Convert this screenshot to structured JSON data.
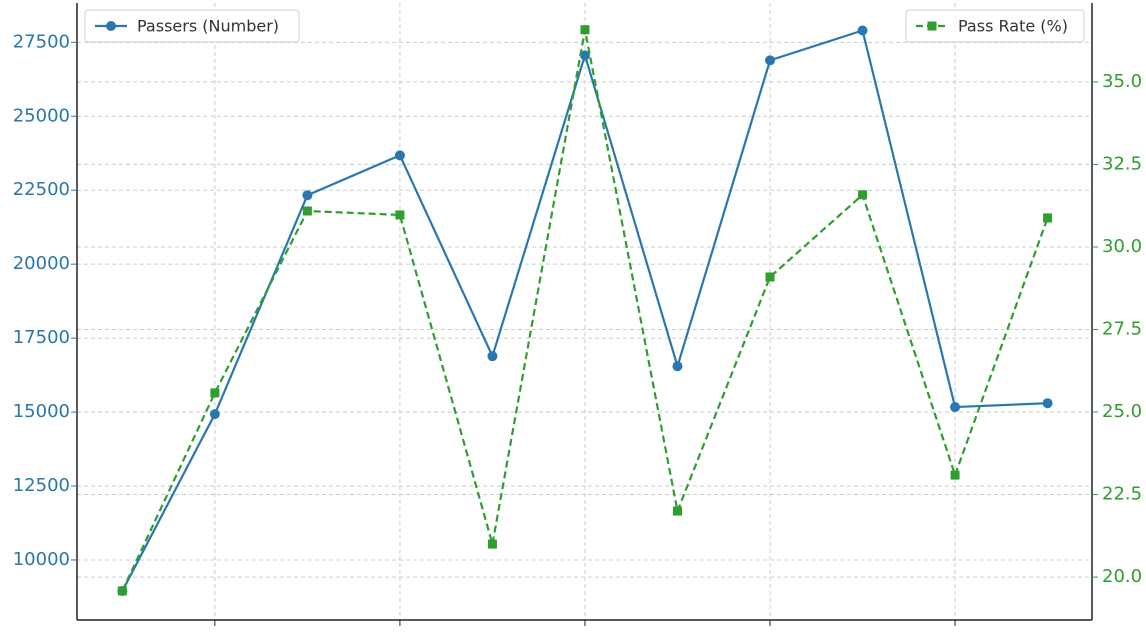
{
  "chart_data": {
    "type": "line",
    "x": [
      1,
      2,
      3,
      4,
      5,
      6,
      7,
      8,
      9,
      10,
      11
    ],
    "xlim": [
      0.51,
      11.48
    ],
    "xticks": [
      2,
      4,
      6,
      8,
      10
    ],
    "ylim": [
      7970,
      28830
    ],
    "yticks": [
      10000,
      12500,
      15000,
      17500,
      20000,
      22500,
      25000,
      27500
    ],
    "y2lim": [
      18.7,
      37.39
    ],
    "y2ticks": [
      {
        "value": 20,
        "label": "20.0"
      },
      {
        "value": 22.5,
        "label": "22.5"
      },
      {
        "value": 25,
        "label": "25.0"
      },
      {
        "value": 27.5,
        "label": "27.5"
      },
      {
        "value": 30,
        "label": "30.0"
      },
      {
        "value": 32.5,
        "label": "32.5"
      },
      {
        "value": 35,
        "label": "35.0"
      }
    ],
    "grid": true,
    "series": [
      {
        "name": "Passers (Number)",
        "color": "#2a77ad",
        "style": "solid",
        "marker": "circle",
        "legend": "upper left",
        "values": [
          8950,
          14930,
          22330,
          23680,
          16890,
          27060,
          16550,
          26890,
          27900,
          15170,
          15300
        ]
      },
      {
        "name": "Pass Rate (%)",
        "color": "#2f9e2f",
        "style": "dashed",
        "marker": "square",
        "legend": "upper right",
        "axis": "y2",
        "values": [
          19.58,
          25.58,
          31.09,
          30.97,
          21.0,
          36.58,
          22.0,
          29.09,
          31.58,
          23.09,
          30.88
        ]
      }
    ]
  }
}
